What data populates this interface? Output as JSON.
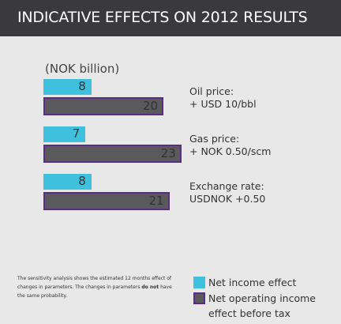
{
  "chart_data": {
    "type": "bar",
    "title": "INDICATIVE EFFECTS ON 2012 RESULTS",
    "unit_label": "(NOK billion)",
    "categories": [
      "Oil price:\n+ USD 10/bbl",
      "Gas price:\n+ NOK 0.50/scm",
      "Exchange rate:\nUSDNOK +0.50"
    ],
    "series": [
      {
        "name": "Net income effect",
        "color": "#3fc1dd",
        "values": [
          8,
          7,
          8
        ]
      },
      {
        "name": "Net operating income effect before tax",
        "color": "#5a5a5c",
        "border": "#5a2e84",
        "values": [
          20,
          23,
          21
        ]
      }
    ],
    "note": {
      "text_before": "The sensitivity analysis shows the estimated 12 months effect of changes in parameters. The changes in parameters ",
      "emphasis": "do not",
      "text_after": " have the same probability."
    }
  }
}
